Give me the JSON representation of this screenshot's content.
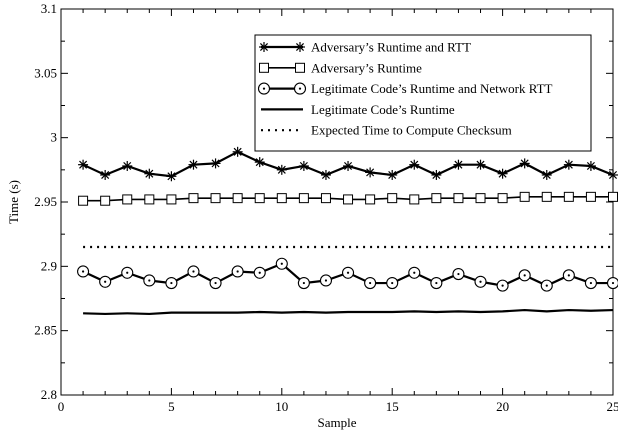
{
  "chart_data": {
    "type": "line",
    "title": "",
    "xlabel": "Sample",
    "ylabel": "Time (s)",
    "xlim": [
      0,
      25
    ],
    "ylim": [
      2.8,
      3.1
    ],
    "xticks": [
      0,
      5,
      10,
      15,
      20,
      25
    ],
    "yticks": [
      2.8,
      2.85,
      2.9,
      2.95,
      3.0,
      3.05,
      3.1
    ],
    "xtick_labels": [
      "0",
      "5",
      "10",
      "15",
      "20",
      "25"
    ],
    "ytick_labels": [
      "2.8",
      "2.85",
      "2.9",
      "2.95",
      "3",
      "3.05",
      "3.1"
    ],
    "grid": false,
    "legend_position": "top-right",
    "x": [
      1,
      2,
      3,
      4,
      5,
      6,
      7,
      8,
      9,
      10,
      11,
      12,
      13,
      14,
      15,
      16,
      17,
      18,
      19,
      20,
      21,
      22,
      23,
      24,
      25
    ],
    "series": [
      {
        "name": "Adversary’s Runtime and RTT",
        "marker": "star",
        "style": "solid",
        "values": [
          2.979,
          2.971,
          2.978,
          2.972,
          2.97,
          2.979,
          2.98,
          2.989,
          2.981,
          2.975,
          2.978,
          2.971,
          2.978,
          2.973,
          2.971,
          2.979,
          2.971,
          2.979,
          2.979,
          2.972,
          2.98,
          2.971,
          2.979,
          2.978,
          2.971
        ]
      },
      {
        "name": "Adversary’s Runtime",
        "marker": "square",
        "style": "solid",
        "values": [
          2.951,
          2.951,
          2.952,
          2.952,
          2.952,
          2.953,
          2.953,
          2.953,
          2.953,
          2.953,
          2.953,
          2.953,
          2.952,
          2.952,
          2.953,
          2.952,
          2.953,
          2.953,
          2.953,
          2.953,
          2.954,
          2.954,
          2.954,
          2.954,
          2.954
        ]
      },
      {
        "name": "Legitimate Code’s Runtime and Network RTT",
        "marker": "circle",
        "style": "solid",
        "values": [
          2.896,
          2.888,
          2.895,
          2.889,
          2.887,
          2.896,
          2.887,
          2.896,
          2.895,
          2.902,
          2.887,
          2.889,
          2.895,
          2.887,
          2.887,
          2.895,
          2.887,
          2.894,
          2.888,
          2.885,
          2.893,
          2.885,
          2.893,
          2.887,
          2.887
        ]
      },
      {
        "name": "Legitimate Code’s Runtime",
        "marker": "none",
        "style": "solid",
        "values": [
          2.8635,
          2.863,
          2.8635,
          2.863,
          2.864,
          2.864,
          2.864,
          2.864,
          2.8645,
          2.864,
          2.8645,
          2.864,
          2.8645,
          2.8645,
          2.8645,
          2.865,
          2.8645,
          2.865,
          2.8645,
          2.865,
          2.866,
          2.865,
          2.866,
          2.8655,
          2.866
        ]
      },
      {
        "name": "Expected Time to Compute Checksum",
        "marker": "none",
        "style": "dotted",
        "values": [
          2.915,
          2.915,
          2.915,
          2.915,
          2.915,
          2.915,
          2.915,
          2.915,
          2.915,
          2.915,
          2.915,
          2.915,
          2.915,
          2.915,
          2.915,
          2.915,
          2.915,
          2.915,
          2.915,
          2.915,
          2.915,
          2.915,
          2.915,
          2.915,
          2.915
        ]
      }
    ]
  }
}
